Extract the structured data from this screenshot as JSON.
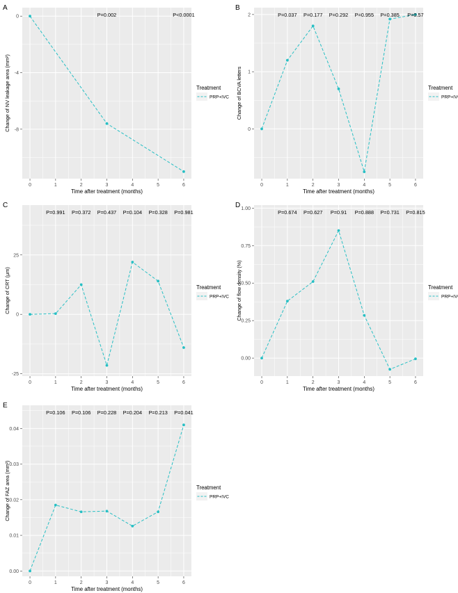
{
  "chart_data": [
    {
      "panel": "A",
      "type": "line",
      "ylabel": "Change of NV leakage area (mm²)",
      "xlabel": "Time after treatment (months)",
      "x": [
        0,
        3,
        6
      ],
      "xticks": [
        "0",
        "1",
        "2",
        "3",
        "4",
        "5",
        "6"
      ],
      "yticks": [
        0,
        -4,
        -8
      ],
      "ytick_labels": [
        "0",
        "-4",
        "-8"
      ],
      "ylim": [
        -11.5,
        0.6
      ],
      "series": [
        {
          "name": "PRP+IVC",
          "values": [
            0,
            -7.6,
            -11.0
          ]
        }
      ],
      "pvalues": [
        {
          "x": 3,
          "label": "P=0.002"
        },
        {
          "x": 6,
          "label": "P<0.0001"
        }
      ],
      "legend_title": "Treatment",
      "legend_label": "PRP+IVC",
      "color": "#26BFC4"
    },
    {
      "panel": "B",
      "type": "line",
      "ylabel": "Change of BCVA letters",
      "xlabel": "Time after treatment (months)",
      "x": [
        0,
        1,
        2,
        3,
        4,
        5,
        6
      ],
      "xticks": [
        "0",
        "1",
        "2",
        "3",
        "4",
        "5",
        "6"
      ],
      "yticks": [
        0,
        1,
        2
      ],
      "ytick_labels": [
        "0",
        "1",
        "2"
      ],
      "ylim": [
        -0.87,
        2.12
      ],
      "series": [
        {
          "name": "PRP+IVC",
          "values": [
            0,
            1.2,
            1.8,
            0.7,
            -0.75,
            1.92,
            2.0
          ]
        }
      ],
      "pvalues": [
        {
          "x": 1,
          "label": "P=0.037"
        },
        {
          "x": 2,
          "label": "P=0.177"
        },
        {
          "x": 3,
          "label": "P=0.292"
        },
        {
          "x": 4,
          "label": "P=0.955"
        },
        {
          "x": 5,
          "label": "P=0.385"
        },
        {
          "x": 6,
          "label": "P=0.57"
        }
      ],
      "legend_title": "Treatment",
      "legend_label": "PRP+IVC",
      "color": "#26BFC4"
    },
    {
      "panel": "C",
      "type": "line",
      "ylabel": "Change of CRT (μm)",
      "xlabel": "Time after treatment (months)",
      "x": [
        0,
        1,
        2,
        3,
        4,
        5,
        6
      ],
      "xticks": [
        "0",
        "1",
        "2",
        "3",
        "4",
        "5",
        "6"
      ],
      "yticks": [
        -25,
        0,
        25
      ],
      "ytick_labels": [
        "-25",
        "0",
        "25"
      ],
      "ylim": [
        -26,
        46
      ],
      "series": [
        {
          "name": "PRP+IVC",
          "values": [
            0,
            0.3,
            12.5,
            -21.5,
            22.0,
            14.0,
            -14.0
          ]
        }
      ],
      "pvalues": [
        {
          "x": 1,
          "label": "P=0.991"
        },
        {
          "x": 2,
          "label": "P=0.372"
        },
        {
          "x": 3,
          "label": "P=0.437"
        },
        {
          "x": 4,
          "label": "P=0.104"
        },
        {
          "x": 5,
          "label": "P=0.328"
        },
        {
          "x": 6,
          "label": "P=0.981"
        }
      ],
      "legend_title": "Treatment",
      "legend_label": "PRP+IVC",
      "color": "#26BFC4"
    },
    {
      "panel": "D",
      "type": "line",
      "ylabel": "Change of flow density (%)",
      "xlabel": "Time after treatment (months)",
      "x": [
        0,
        1,
        2,
        3,
        4,
        5,
        6
      ],
      "xticks": [
        "0",
        "1",
        "2",
        "3",
        "4",
        "5",
        "6"
      ],
      "yticks": [
        0,
        0.25,
        0.5,
        0.75,
        1.0
      ],
      "ytick_labels": [
        "0.00",
        "0.25",
        "0.50",
        "0.75",
        "1.00"
      ],
      "ylim": [
        -0.12,
        1.02
      ],
      "series": [
        {
          "name": "PRP+IVC",
          "values": [
            0.0,
            0.38,
            0.51,
            0.85,
            0.285,
            -0.075,
            -0.005
          ]
        }
      ],
      "pvalues": [
        {
          "x": 1,
          "label": "P=0.674"
        },
        {
          "x": 2,
          "label": "P=0.627"
        },
        {
          "x": 3,
          "label": "P=0.91"
        },
        {
          "x": 4,
          "label": "P=0.888"
        },
        {
          "x": 5,
          "label": "P=0.731"
        },
        {
          "x": 6,
          "label": "P=0.815"
        }
      ],
      "legend_title": "Treatment",
      "legend_label": "PRP+IVC",
      "color": "#26BFC4"
    },
    {
      "panel": "E",
      "type": "line",
      "ylabel": "Change of FAZ area (mm²)",
      "xlabel": "Time after treatment (months)",
      "x": [
        0,
        1,
        2,
        3,
        4,
        5,
        6
      ],
      "xticks": [
        "0",
        "1",
        "2",
        "3",
        "4",
        "5",
        "6"
      ],
      "yticks": [
        0,
        0.01,
        0.02,
        0.03,
        0.04
      ],
      "ytick_labels": [
        "0.00",
        "0.01",
        "0.02",
        "0.03",
        "0.04"
      ],
      "ylim": [
        -0.0015,
        0.0465
      ],
      "series": [
        {
          "name": "PRP+IVC",
          "values": [
            0.0,
            0.0185,
            0.0166,
            0.0168,
            0.0126,
            0.0166,
            0.041
          ]
        }
      ],
      "pvalues": [
        {
          "x": 1,
          "label": "P=0.106"
        },
        {
          "x": 2,
          "label": "P=0.106"
        },
        {
          "x": 3,
          "label": "P=0.228"
        },
        {
          "x": 4,
          "label": "P=0.204"
        },
        {
          "x": 5,
          "label": "P=0.213"
        },
        {
          "x": 6,
          "label": "P=0.041"
        }
      ],
      "legend_title": "Treatment",
      "legend_label": "PRP+IVC",
      "color": "#26BFC4"
    }
  ]
}
